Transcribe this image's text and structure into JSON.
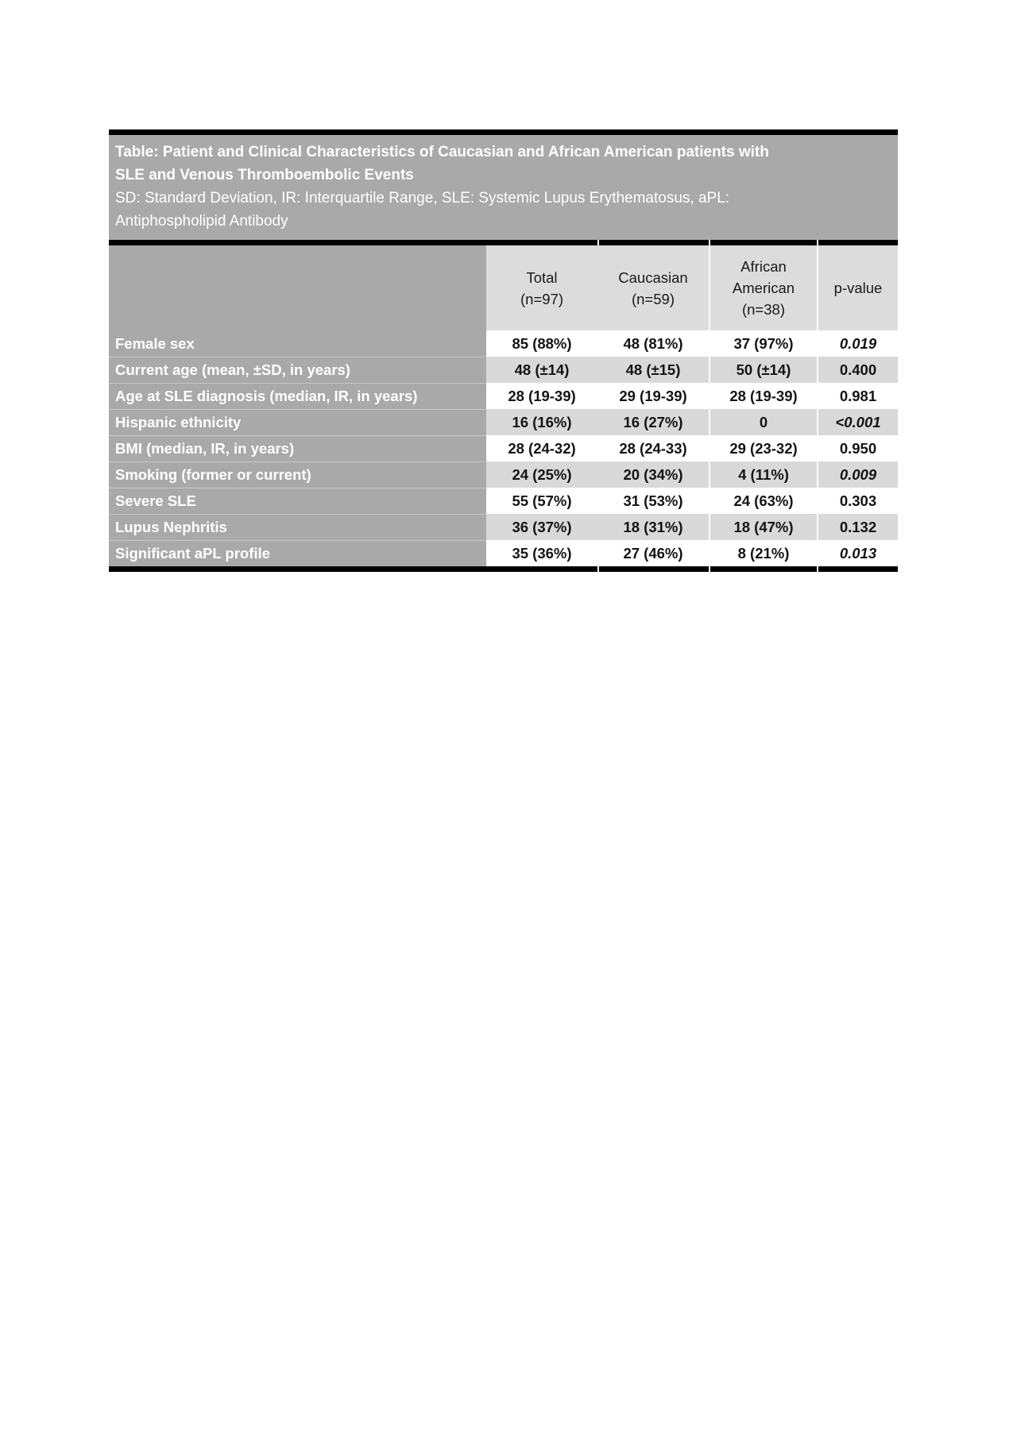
{
  "table": {
    "title": "Table: Patient and Clinical Characteristics of Caucasian and African American patients with\nSLE and Venous Thromboembolic Events",
    "legend": "SD: Standard Deviation, IR: Interquartile Range, SLE: Systemic Lupus Erythematosus, aPL:\nAntiphospholipid Antibody",
    "columns": [
      "",
      "Total\n(n=97)",
      "Caucasian\n(n=59)",
      "African\nAmerican\n(n=38)",
      "p-value"
    ],
    "rows": [
      {
        "label": "Female sex",
        "values": [
          "85 (88%)",
          "48 (81%)",
          "37 (97%)"
        ],
        "p_value": "0.019",
        "p_italic": true
      },
      {
        "label": "Current age (mean, ±SD, in years)",
        "values": [
          "48 (±14)",
          "48 (±15)",
          "50 (±14)"
        ],
        "p_value": "0.400",
        "p_italic": false
      },
      {
        "label": "Age at SLE diagnosis (median, IR, in years)",
        "values": [
          "28 (19-39)",
          "29 (19-39)",
          "28 (19-39)"
        ],
        "p_value": "0.981",
        "p_italic": false
      },
      {
        "label": "Hispanic ethnicity",
        "values": [
          "16 (16%)",
          "16 (27%)",
          "0"
        ],
        "p_value": "<0.001",
        "p_italic": true
      },
      {
        "label": "BMI (median, IR, in years)",
        "values": [
          "28 (24-32)",
          "28 (24-33)",
          "29 (23-32)"
        ],
        "p_value": "0.950",
        "p_italic": false
      },
      {
        "label": "Smoking (former or current)",
        "values": [
          "24 (25%)",
          "20 (34%)",
          "4 (11%)"
        ],
        "p_value": "0.009",
        "p_italic": true
      },
      {
        "label": "Severe SLE",
        "values": [
          "55 (57%)",
          "31 (53%)",
          "24 (63%)"
        ],
        "p_value": "0.303",
        "p_italic": false
      },
      {
        "label": "Lupus Nephritis",
        "values": [
          "36 (37%)",
          "18 (31%)",
          "18 (47%)"
        ],
        "p_value": "0.132",
        "p_italic": false
      },
      {
        "label": "Significant aPL profile",
        "values": [
          "35 (36%)",
          "27 (46%)",
          "8 (21%)"
        ],
        "p_value": "0.013",
        "p_italic": true
      }
    ]
  },
  "colors": {
    "header_block_bg": "#a9a9a9",
    "column_header_bg": "#dcdcdc",
    "stripe_row_bg": "#d9d9d9",
    "plain_row_bg": "#ffffff",
    "rule_color": "#000000",
    "title_text": "#ffffff",
    "data_text": "#141414"
  }
}
